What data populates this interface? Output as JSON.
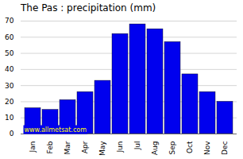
{
  "chart_data": {
    "type": "bar",
    "title": "The Pas : precipitation (mm)",
    "categories": [
      "Jan",
      "Feb",
      "Mar",
      "Apr",
      "May",
      "Jun",
      "Jul",
      "Aug",
      "Sep",
      "Oct",
      "Nov",
      "Dec"
    ],
    "values": [
      16,
      15,
      21,
      26,
      33,
      62,
      68,
      65,
      57,
      37,
      26,
      20
    ],
    "color": "#0000EE",
    "ylim": [
      0,
      70
    ],
    "yticks": [
      0,
      10,
      20,
      30,
      40,
      50,
      60,
      70
    ],
    "grid": true,
    "annotations": [
      {
        "text": "www.allmetsat.com",
        "color": "#FFFF00"
      }
    ]
  }
}
